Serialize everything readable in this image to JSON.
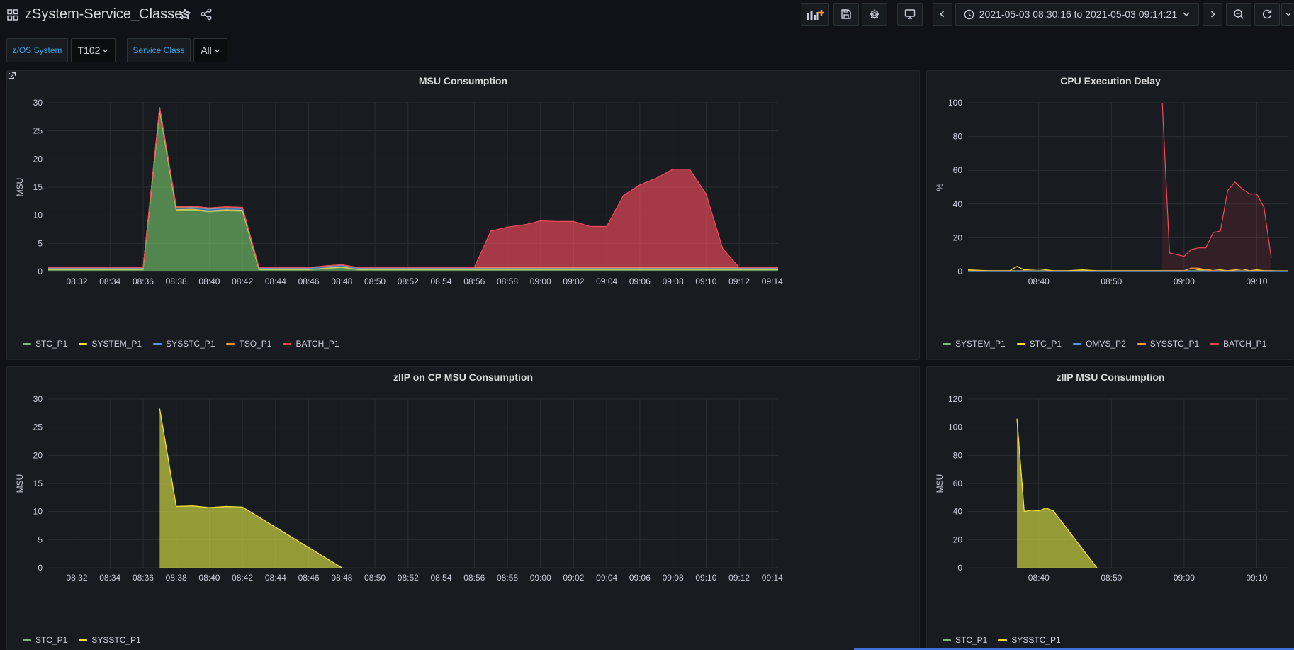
{
  "header": {
    "title": "zSystem-Service_Classes",
    "time_range": "2021-05-03 08:30:16 to 2021-05-03 09:14:21"
  },
  "variables": [
    {
      "label": "z/OS System",
      "value": "T102"
    },
    {
      "label": "Service Class",
      "value": "All"
    }
  ],
  "colors": {
    "green": "#73bf69",
    "yellow": "#fade2a",
    "blue": "#5794f2",
    "orange": "#ff9830",
    "red": "#f2495c",
    "accent": "#33a2e5"
  },
  "panels": {
    "msu": {
      "title": "MSU Consumption",
      "ylabel": "MSU",
      "legend": [
        "STC_P1",
        "SYSTEM_P1",
        "SYSSTC_P1",
        "TSO_P1",
        "BATCH_P1"
      ]
    },
    "cpu_delay": {
      "title": "CPU Execution Delay",
      "ylabel": "%",
      "legend": [
        "SYSTEM_P1",
        "STC_P1",
        "OMVS_P2",
        "SYSSTC_P1",
        "BATCH_P1"
      ]
    },
    "ziip_on_cp": {
      "title": "zIIP on CP MSU Consumption",
      "ylabel": "MSU",
      "legend": [
        "STC_P1",
        "SYSSTC_P1"
      ]
    },
    "ziip": {
      "title": "zIIP MSU Consumption",
      "ylabel": "MSU",
      "legend": [
        "STC_P1",
        "SYSSTC_P1"
      ]
    }
  },
  "chart_data": [
    {
      "id": "msu",
      "type": "area",
      "title": "MSU Consumption",
      "ylabel": "MSU",
      "ylim": [
        0,
        30
      ],
      "yticks": [
        0,
        5,
        10,
        15,
        20,
        25,
        30
      ],
      "xticks": [
        "08:32",
        "08:34",
        "08:36",
        "08:38",
        "08:40",
        "08:42",
        "08:44",
        "08:46",
        "08:48",
        "08:50",
        "08:52",
        "08:54",
        "08:56",
        "08:58",
        "09:00",
        "09:02",
        "09:04",
        "09:06",
        "09:08",
        "09:10",
        "09:12",
        "09:14"
      ],
      "xlim": [
        "08:30:16",
        "09:14:21"
      ],
      "stacked": true,
      "x": [
        "08:30:16",
        "08:31",
        "08:32",
        "08:33",
        "08:34",
        "08:35",
        "08:36",
        "08:37",
        "08:38",
        "08:39",
        "08:40",
        "08:41",
        "08:42",
        "08:43",
        "08:44",
        "08:45",
        "08:46",
        "08:47",
        "08:48",
        "08:49",
        "08:50",
        "08:51",
        "08:52",
        "08:53",
        "08:54",
        "08:55",
        "08:56",
        "08:57",
        "08:58",
        "08:59",
        "09:00",
        "09:01",
        "09:02",
        "09:03",
        "09:04",
        "09:05",
        "09:06",
        "09:07",
        "09:08",
        "09:09",
        "09:10",
        "09:11",
        "09:12",
        "09:13",
        "09:14:21"
      ],
      "series": [
        {
          "name": "STC_P1",
          "color": "#73bf69",
          "values": [
            0.3,
            0.3,
            0.3,
            0.3,
            0.3,
            0.3,
            0.3,
            28.5,
            10.8,
            10.9,
            10.6,
            10.8,
            10.7,
            0.3,
            0.3,
            0.3,
            0.3,
            0.5,
            0.7,
            0.3,
            0.3,
            0.3,
            0.3,
            0.3,
            0.3,
            0.3,
            0.3,
            0.3,
            0.3,
            0.3,
            0.3,
            0.3,
            0.3,
            0.3,
            0.3,
            0.3,
            0.3,
            0.3,
            0.3,
            0.3,
            0.3,
            0.3,
            0.3,
            0.3,
            0.3
          ]
        },
        {
          "name": "SYSTEM_P1",
          "color": "#fade2a",
          "values": [
            0.1,
            0.1,
            0.1,
            0.1,
            0.1,
            0.1,
            0.1,
            0.3,
            0.2,
            0.2,
            0.2,
            0.2,
            0.2,
            0.1,
            0.1,
            0.1,
            0.1,
            0.1,
            0.1,
            0.1,
            0.1,
            0.1,
            0.1,
            0.1,
            0.1,
            0.1,
            0.1,
            0.1,
            0.1,
            0.1,
            0.1,
            0.1,
            0.1,
            0.1,
            0.1,
            0.1,
            0.1,
            0.1,
            0.1,
            0.1,
            0.1,
            0.1,
            0.1,
            0.1,
            0.1
          ]
        },
        {
          "name": "SYSSTC_P1",
          "color": "#5794f2",
          "values": [
            0.2,
            0.2,
            0.2,
            0.2,
            0.2,
            0.2,
            0.2,
            0.3,
            0.3,
            0.3,
            0.3,
            0.3,
            0.3,
            0.2,
            0.2,
            0.2,
            0.2,
            0.3,
            0.3,
            0.2,
            0.2,
            0.2,
            0.2,
            0.2,
            0.2,
            0.2,
            0.2,
            0.2,
            0.2,
            0.2,
            0.2,
            0.2,
            0.2,
            0.2,
            0.2,
            0.2,
            0.2,
            0.2,
            0.2,
            0.2,
            0.2,
            0.2,
            0.2,
            0.2,
            0.2
          ]
        },
        {
          "name": "TSO_P1",
          "color": "#ff9830",
          "values": [
            0.1,
            0.1,
            0.1,
            0.1,
            0.1,
            0.1,
            0.1,
            0.1,
            0.2,
            0.2,
            0.2,
            0.2,
            0.2,
            0.1,
            0.1,
            0.1,
            0.1,
            0.1,
            0.1,
            0.1,
            0.1,
            0.1,
            0.1,
            0.1,
            0.1,
            0.1,
            0.1,
            0.1,
            0.1,
            0.1,
            0.1,
            0.1,
            0.1,
            0.1,
            0.1,
            0.1,
            0.1,
            0.1,
            0.1,
            0.1,
            0.1,
            0.1,
            0.1,
            0.1,
            0.1
          ]
        },
        {
          "name": "BATCH_P1",
          "color": "#f2495c",
          "values": [
            0,
            0,
            0,
            0,
            0,
            0,
            0,
            0,
            0,
            0,
            0,
            0,
            0,
            0,
            0,
            0,
            0,
            0,
            0,
            0,
            0,
            0,
            0,
            0,
            0,
            0,
            0,
            6.5,
            7.2,
            7.6,
            8.3,
            8.2,
            8.2,
            7.3,
            7.3,
            12.8,
            14.7,
            15.9,
            17.5,
            17.5,
            13.1,
            3.4,
            0,
            0,
            0
          ]
        }
      ]
    },
    {
      "id": "cpu_delay",
      "type": "line",
      "title": "CPU Execution Delay",
      "ylabel": "%",
      "ylim": [
        0,
        100
      ],
      "yticks": [
        0,
        20,
        40,
        60,
        80,
        100
      ],
      "xticks": [
        "08:40",
        "08:50",
        "09:00",
        "09:10"
      ],
      "xlim": [
        "08:30:16",
        "09:14:21"
      ],
      "x": [
        "08:30:16",
        "08:33",
        "08:36",
        "08:37",
        "08:38",
        "08:40",
        "08:42",
        "08:44",
        "08:46",
        "08:48",
        "08:50",
        "08:52",
        "08:54",
        "08:55",
        "08:56",
        "08:57",
        "08:58",
        "08:59",
        "09:00",
        "09:01",
        "09:02",
        "09:03",
        "09:04",
        "09:05",
        "09:06",
        "09:07",
        "09:08",
        "09:09",
        "09:10",
        "09:11",
        "09:12",
        "09:14:21"
      ],
      "series": [
        {
          "name": "SYSTEM_P1",
          "color": "#73bf69",
          "values": [
            0.5,
            0.5,
            0.5,
            0.5,
            0.5,
            0.5,
            0.5,
            0.5,
            0.5,
            0.5,
            0.5,
            0.5,
            0.5,
            0.5,
            0.5,
            0.5,
            0.5,
            0.5,
            0.5,
            0.5,
            0.5,
            0.5,
            0.5,
            0.5,
            0.5,
            0.5,
            0.5,
            0.5,
            0.5,
            0.5,
            0.5,
            0.5
          ]
        },
        {
          "name": "STC_P1",
          "color": "#fade2a",
          "values": [
            1,
            0.5,
            0.5,
            3,
            1,
            1.5,
            0.5,
            0.5,
            1,
            0.5,
            0.5,
            0.5,
            0.5,
            0.5,
            0.5,
            0.5,
            0.5,
            0.5,
            0.5,
            2,
            1,
            1,
            1.5,
            1,
            0.5,
            1,
            1.5,
            0.5,
            1,
            0.5,
            0.5,
            0
          ]
        },
        {
          "name": "OMVS_P2",
          "color": "#5794f2",
          "values": [
            0,
            0,
            0,
            0,
            0,
            0,
            0,
            0,
            0,
            0,
            0,
            0,
            0,
            0,
            0,
            0,
            0,
            0,
            0,
            0,
            0,
            0,
            0,
            0,
            0,
            0,
            0,
            0,
            0,
            0,
            0,
            0
          ]
        },
        {
          "name": "SYSSTC_P1",
          "color": "#ff9830",
          "values": [
            0.3,
            0.3,
            0.3,
            0.3,
            0.3,
            0.3,
            0.3,
            0.3,
            0.3,
            0.3,
            0.3,
            0.3,
            0.3,
            0.3,
            0.3,
            0.3,
            0.3,
            0.3,
            0.3,
            2,
            2,
            1,
            0.5,
            0.3,
            0.3,
            0.3,
            0.3,
            0.3,
            0.3,
            0.3,
            0.3,
            0.3
          ]
        },
        {
          "name": "BATCH_P1",
          "color": "#f2495c",
          "values": [
            null,
            null,
            null,
            null,
            null,
            null,
            null,
            null,
            null,
            null,
            null,
            null,
            null,
            null,
            null,
            100,
            11,
            10,
            9,
            13,
            14,
            14,
            23,
            24,
            48,
            53,
            49,
            46,
            46,
            38,
            8,
            null
          ]
        }
      ]
    },
    {
      "id": "ziip_on_cp",
      "type": "area",
      "title": "zIIP on CP MSU Consumption",
      "ylabel": "MSU",
      "ylim": [
        0,
        30
      ],
      "yticks": [
        0,
        5,
        10,
        15,
        20,
        25,
        30
      ],
      "xticks": [
        "08:32",
        "08:34",
        "08:36",
        "08:38",
        "08:40",
        "08:42",
        "08:44",
        "08:46",
        "08:48",
        "08:50",
        "08:52",
        "08:54",
        "08:56",
        "08:58",
        "09:00",
        "09:02",
        "09:04",
        "09:06",
        "09:08",
        "09:10",
        "09:12",
        "09:14"
      ],
      "xlim": [
        "08:30:16",
        "09:14:21"
      ],
      "x": [
        "08:37",
        "08:38",
        "08:39",
        "08:40",
        "08:41",
        "08:42",
        "08:48"
      ],
      "series": [
        {
          "name": "STC_P1",
          "color": "#73bf69",
          "values": [
            28.3,
            10.9,
            11.0,
            10.7,
            10.9,
            10.8,
            0
          ]
        },
        {
          "name": "SYSSTC_P1",
          "color": "#fade2a",
          "values": [
            28.3,
            10.9,
            11.0,
            10.7,
            10.9,
            10.8,
            0
          ]
        }
      ]
    },
    {
      "id": "ziip",
      "type": "area",
      "title": "zIIP MSU Consumption",
      "ylabel": "MSU",
      "ylim": [
        0,
        120
      ],
      "yticks": [
        0,
        20,
        40,
        60,
        80,
        100,
        120
      ],
      "xticks": [
        "08:40",
        "08:50",
        "09:00",
        "09:10"
      ],
      "xlim": [
        "08:30:16",
        "09:14:21"
      ],
      "x": [
        "08:37",
        "08:38",
        "08:39",
        "08:40",
        "08:41",
        "08:42",
        "08:48"
      ],
      "series": [
        {
          "name": "STC_P1",
          "color": "#73bf69",
          "values": [
            106,
            40,
            41,
            40.5,
            42.5,
            40.5,
            0
          ]
        },
        {
          "name": "SYSSTC_P1",
          "color": "#fade2a",
          "values": [
            106,
            40,
            41,
            40.5,
            42.5,
            40.5,
            0
          ]
        }
      ]
    }
  ]
}
